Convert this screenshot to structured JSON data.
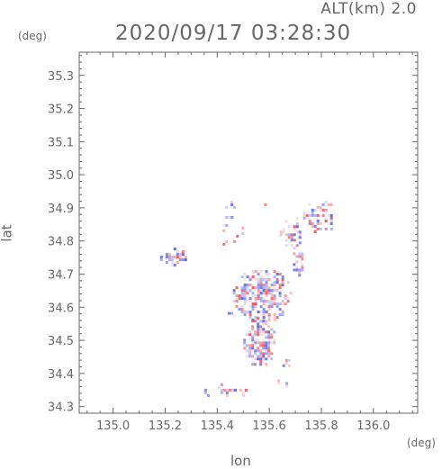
{
  "header": {
    "altitude_label": "ALT(km)  2.0",
    "timestamp": "2020/09/17 03:28:30"
  },
  "chart_data": {
    "type": "heatmap",
    "title": "2020/09/17 03:28:30",
    "subtitle": "ALT(km)  2.0",
    "xlabel": "lon",
    "ylabel": "lat",
    "x_unit": "(deg)",
    "y_unit": "(deg)",
    "xlim": [
      134.87,
      136.17
    ],
    "ylim": [
      34.28,
      35.37
    ],
    "x_ticks": [
      135.0,
      135.2,
      135.4,
      135.6,
      135.8,
      136.0
    ],
    "x_tick_labels": [
      "135.0",
      "135.2",
      "135.4",
      "135.6",
      "135.8",
      "136.0"
    ],
    "y_ticks": [
      34.3,
      34.4,
      34.5,
      34.6,
      34.7,
      34.8,
      34.9,
      35.0,
      35.1,
      35.2,
      35.3
    ],
    "y_tick_labels": [
      "34.3",
      "34.4",
      "34.5",
      "34.6",
      "34.7",
      "34.8",
      "34.9",
      "35.0",
      "35.1",
      "35.2",
      "35.3"
    ],
    "grid": false,
    "colors": {
      "positive": "#e8404a",
      "negative": "#4a55e0",
      "axis": "#666666"
    },
    "echo_regions": [
      {
        "lon": [
          135.17,
          135.28
        ],
        "lat": [
          34.73,
          34.78
        ],
        "density": 0.7
      },
      {
        "lon": [
          135.42,
          135.47
        ],
        "lat": [
          34.9,
          34.93
        ],
        "density": 0.5
      },
      {
        "lon": [
          135.4,
          135.5
        ],
        "lat": [
          34.78,
          34.9
        ],
        "density": 0.15
      },
      {
        "lon": [
          135.57,
          135.61
        ],
        "lat": [
          34.9,
          34.93
        ],
        "density": 0.3
      },
      {
        "lon": [
          135.64,
          135.73
        ],
        "lat": [
          34.78,
          34.88
        ],
        "density": 0.5
      },
      {
        "lon": [
          135.73,
          135.86
        ],
        "lat": [
          34.83,
          34.93
        ],
        "density": 0.55
      },
      {
        "lon": [
          135.68,
          135.73
        ],
        "lat": [
          34.7,
          34.79
        ],
        "density": 0.4
      },
      {
        "lon": [
          135.46,
          135.68
        ],
        "lat": [
          34.56,
          34.72
        ],
        "density": 0.75
      },
      {
        "lon": [
          135.5,
          135.62
        ],
        "lat": [
          34.42,
          34.57
        ],
        "density": 0.8
      },
      {
        "lon": [
          135.43,
          135.47
        ],
        "lat": [
          34.57,
          34.61
        ],
        "density": 0.3
      },
      {
        "lon": [
          135.64,
          135.68
        ],
        "lat": [
          34.41,
          34.46
        ],
        "density": 0.35
      },
      {
        "lon": [
          135.34,
          135.52
        ],
        "lat": [
          34.33,
          34.37
        ],
        "density": 0.5
      },
      {
        "lon": [
          135.6,
          135.68
        ],
        "lat": [
          34.36,
          34.39
        ],
        "density": 0.25
      }
    ]
  }
}
